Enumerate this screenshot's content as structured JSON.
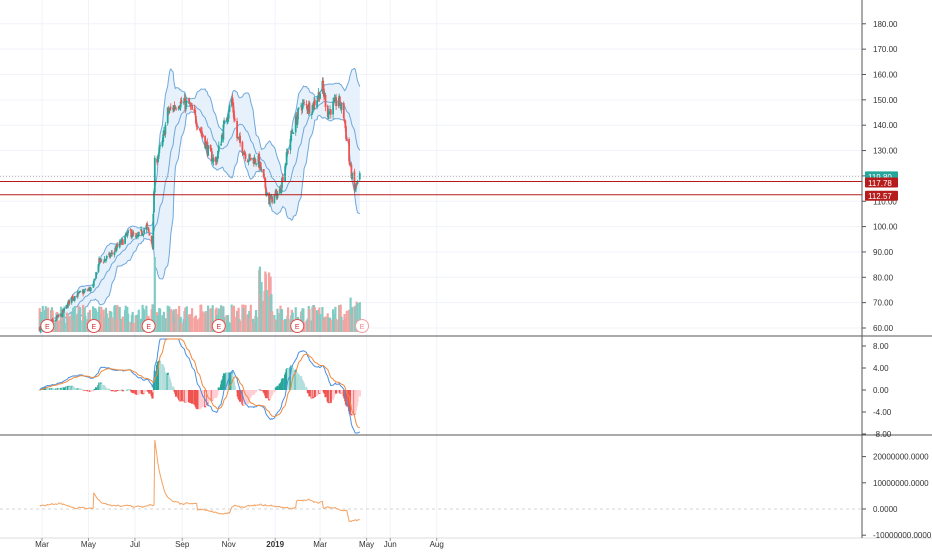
{
  "colors": {
    "up": "#26a69a",
    "down": "#ef5350",
    "vol_up": "#7fccc4",
    "vol_down": "#f5a3a1",
    "band_line": "#6fa8dc",
    "band_fill": "#e3f0fb",
    "macd_line": "#4a90e2",
    "signal_line": "#f08a3c",
    "hist_pos_strong": "#26a69a",
    "hist_pos_weak": "#b2dfdb",
    "hist_neg_strong": "#ef5350",
    "hist_neg_weak": "#ffcdd2",
    "osc_line": "#f4a261",
    "last_price_bg": "#26a69a",
    "level_line_bg": "#b71c1c",
    "grid": "#f0f3fa",
    "axis_text": "#333333"
  },
  "chart_data": [
    {
      "type": "candlestick",
      "panel": "price",
      "y_ticks": [
        "60.00",
        "70.00",
        "80.00",
        "90.00",
        "100.00",
        "110.00",
        "120.00",
        "130.00",
        "140.00",
        "150.00",
        "160.00",
        "170.00",
        "180.00"
      ],
      "ylim": [
        58,
        190
      ],
      "price_labels": [
        {
          "text": "119.80",
          "kind": "last"
        },
        {
          "text": "117.78",
          "kind": "level"
        },
        {
          "text": "112.57",
          "kind": "level"
        }
      ],
      "levels": [
        117.78,
        112.57
      ],
      "earnings_markers": {
        "label": "E",
        "dates": [
          "2018-03-08",
          "2018-05-08",
          "2018-07-19",
          "2018-10-19",
          "2019-01-30",
          "2019-04-25"
        ]
      },
      "overlay": "bollinger_bands",
      "close_series": [
        [
          "2018-02-26",
          60
        ],
        [
          "2018-03-12",
          62
        ],
        [
          "2018-03-26",
          65
        ],
        [
          "2018-04-09",
          72
        ],
        [
          "2018-04-23",
          74
        ],
        [
          "2018-05-07",
          76
        ],
        [
          "2018-05-14",
          86
        ],
        [
          "2018-05-28",
          88
        ],
        [
          "2018-06-11",
          93
        ],
        [
          "2018-06-25",
          98
        ],
        [
          "2018-07-02",
          95
        ],
        [
          "2018-07-16",
          100
        ],
        [
          "2018-07-24",
          93
        ],
        [
          "2018-07-27",
          125
        ],
        [
          "2018-08-06",
          133
        ],
        [
          "2018-08-13",
          145
        ],
        [
          "2018-08-27",
          149
        ],
        [
          "2018-09-10",
          148
        ],
        [
          "2018-09-24",
          139
        ],
        [
          "2018-10-05",
          130
        ],
        [
          "2018-10-15",
          125
        ],
        [
          "2018-10-26",
          140
        ],
        [
          "2018-11-05",
          150
        ],
        [
          "2018-11-12",
          135
        ],
        [
          "2018-11-26",
          127
        ],
        [
          "2018-12-10",
          126
        ],
        [
          "2018-12-24",
          110
        ],
        [
          "2019-01-07",
          114
        ],
        [
          "2019-01-21",
          135
        ],
        [
          "2019-02-04",
          148
        ],
        [
          "2019-02-18",
          147
        ],
        [
          "2019-03-04",
          155
        ],
        [
          "2019-03-11",
          145
        ],
        [
          "2019-03-25",
          150
        ],
        [
          "2019-04-01",
          144
        ],
        [
          "2019-04-08",
          126
        ],
        [
          "2019-04-15",
          114
        ],
        [
          "2019-04-22",
          119.8
        ]
      ]
    },
    {
      "type": "bar",
      "panel": "volume",
      "note_values": "relative volume, 0-1",
      "series_dates_from": "close_series"
    },
    {
      "type": "line",
      "panel": "macd",
      "y_ticks": [
        "8.00",
        "4.00",
        "0.00",
        "-4.00",
        "-8.00"
      ],
      "ylim": [
        -8.8,
        9.0
      ]
    },
    {
      "type": "line",
      "panel": "oscillator",
      "y_ticks": [
        "20000000.0000",
        "10000000.0000",
        "0.0000",
        "-10000000.0000"
      ],
      "ylim": [
        -10400000,
        28000000
      ],
      "spikes": [
        [
          "2018-05-08",
          7000000
        ],
        [
          "2018-07-27",
          27000000
        ]
      ]
    }
  ],
  "x_axis": {
    "labels": [
      "Mar",
      "May",
      "Jul",
      "Sep",
      "Nov",
      "2019",
      "Mar",
      "May",
      "Jun",
      "Aug"
    ],
    "dates": [
      "2018-03-01",
      "2018-05-01",
      "2018-07-01",
      "2018-09-01",
      "2018-11-01",
      "2019-01-01",
      "2019-03-01",
      "2019-05-01",
      "2019-06-01",
      "2019-08-01"
    ],
    "bold_label": "2019"
  }
}
